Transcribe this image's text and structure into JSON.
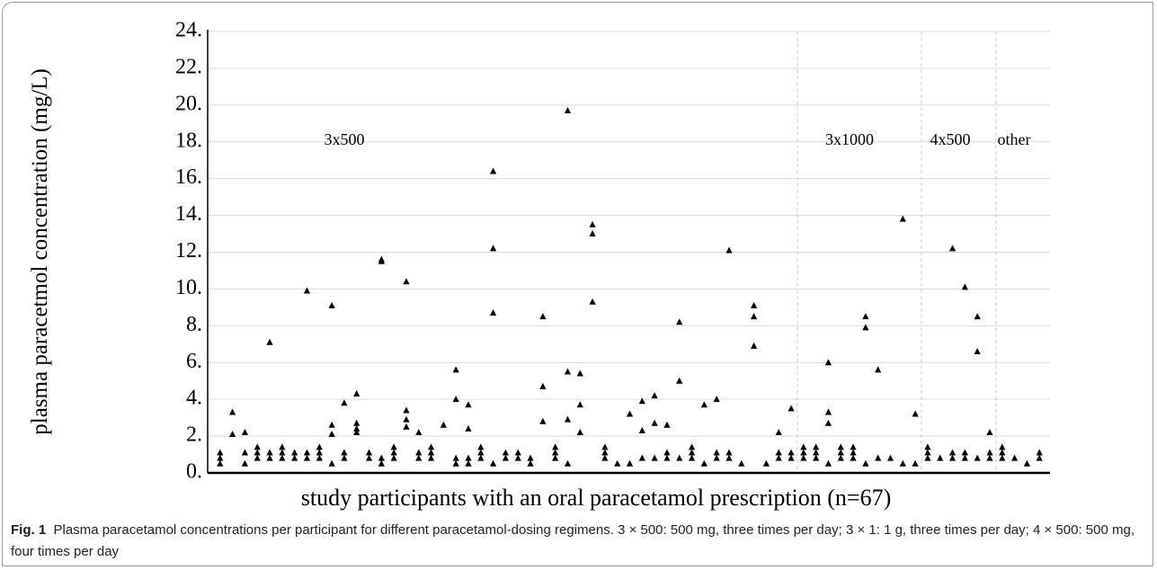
{
  "chart_data": {
    "type": "scatter",
    "y_label": "plasma paracetmol concentration (mg/L)",
    "x_label": "study participants with an oral paracetamol prescription (n=67)",
    "annotations": [
      "3x500",
      "3x1000",
      "4x500",
      "other"
    ],
    "dividers": [
      47.5,
      57.5,
      63.5
    ],
    "xlim": [
      0,
      68
    ],
    "ylim": [
      0,
      24
    ],
    "yticks": [
      {
        "value": 0,
        "label": "0."
      },
      {
        "value": 2,
        "label": "2."
      },
      {
        "value": 4,
        "label": "4."
      },
      {
        "value": 6,
        "label": "6."
      },
      {
        "value": 8,
        "label": "8."
      },
      {
        "value": 10,
        "label": "10."
      },
      {
        "value": 12,
        "label": "12."
      },
      {
        "value": 14,
        "label": "14."
      },
      {
        "value": 16,
        "label": "16."
      },
      {
        "value": 18,
        "label": "18."
      },
      {
        "value": 20,
        "label": "20."
      },
      {
        "value": 22,
        "label": "22."
      },
      {
        "value": 24,
        "label": "24."
      }
    ],
    "grid": true,
    "color": "#000000",
    "x": [
      1,
      1,
      1,
      2,
      2,
      3,
      3,
      3,
      4,
      4,
      4,
      5,
      5,
      5,
      6,
      6,
      6,
      7,
      7,
      8,
      8,
      8,
      9,
      9,
      9,
      10,
      10,
      10,
      10,
      11,
      11,
      11,
      12,
      12,
      12,
      12,
      13,
      13,
      14,
      14,
      14,
      14,
      15,
      15,
      15,
      16,
      16,
      16,
      16,
      17,
      17,
      17,
      18,
      18,
      18,
      19,
      20,
      20,
      20,
      20,
      21,
      21,
      21,
      21,
      22,
      22,
      22,
      23,
      23,
      23,
      23,
      24,
      24,
      25,
      25,
      26,
      26,
      27,
      27,
      27,
      28,
      28,
      28,
      29,
      29,
      29,
      29,
      30,
      30,
      30,
      31,
      31,
      31,
      32,
      32,
      32,
      33,
      34,
      34,
      35,
      35,
      35,
      36,
      36,
      36,
      37,
      37,
      37,
      38,
      38,
      38,
      39,
      39,
      39,
      40,
      40,
      41,
      41,
      41,
      42,
      42,
      42,
      43,
      44,
      44,
      44,
      45,
      46,
      46,
      46,
      47,
      47,
      47,
      48,
      48,
      48,
      49,
      49,
      49,
      50,
      50,
      50,
      50,
      51,
      51,
      51,
      52,
      52,
      52,
      53,
      53,
      53,
      54,
      54,
      55,
      56,
      56,
      57,
      57,
      58,
      58,
      58,
      59,
      60,
      60,
      60,
      61,
      61,
      61,
      62,
      62,
      62,
      63,
      63,
      63,
      64,
      64,
      64,
      65,
      66,
      67,
      67
    ],
    "values": [
      0.5,
      0.8,
      1.1,
      2.1,
      3.3,
      0.5,
      1.1,
      2.2,
      0.8,
      1.1,
      1.4,
      0.8,
      1.1,
      7.1,
      0.8,
      1.1,
      1.4,
      0.8,
      1.1,
      0.8,
      1.1,
      9.9,
      0.8,
      1.1,
      1.4,
      0.5,
      2.1,
      2.6,
      9.1,
      0.8,
      1.1,
      3.8,
      2.2,
      2.4,
      2.7,
      4.3,
      0.8,
      1.1,
      0.5,
      0.8,
      11.5,
      11.6,
      0.8,
      1.1,
      1.4,
      2.5,
      2.9,
      3.4,
      10.4,
      0.8,
      1.1,
      2.2,
      0.8,
      1.1,
      1.4,
      2.6,
      0.5,
      0.8,
      4.0,
      5.6,
      0.5,
      0.8,
      2.4,
      3.7,
      0.8,
      1.1,
      1.4,
      0.5,
      8.7,
      12.2,
      16.4,
      0.8,
      1.1,
      0.8,
      1.1,
      0.5,
      0.8,
      2.8,
      4.7,
      8.5,
      0.8,
      1.1,
      1.4,
      0.5,
      2.9,
      5.5,
      19.7,
      2.2,
      3.7,
      5.4,
      9.3,
      13.0,
      13.5,
      0.8,
      1.1,
      1.4,
      0.5,
      0.5,
      3.2,
      0.8,
      2.3,
      3.9,
      0.8,
      2.7,
      4.2,
      0.8,
      1.1,
      2.6,
      0.8,
      5.0,
      8.2,
      0.8,
      1.1,
      1.4,
      0.5,
      3.7,
      0.8,
      1.1,
      4.0,
      0.8,
      1.1,
      12.1,
      0.5,
      6.9,
      8.5,
      9.1,
      0.5,
      0.8,
      1.1,
      2.2,
      0.8,
      1.1,
      3.5,
      0.8,
      1.1,
      1.4,
      0.8,
      1.1,
      1.4,
      0.5,
      2.7,
      3.3,
      6.0,
      0.8,
      1.1,
      1.4,
      0.8,
      1.1,
      1.4,
      0.5,
      7.9,
      8.5,
      0.8,
      5.6,
      0.8,
      0.5,
      13.8,
      0.5,
      3.2,
      0.8,
      1.1,
      1.4,
      0.8,
      0.8,
      1.1,
      12.2,
      0.8,
      1.1,
      10.1,
      0.8,
      6.6,
      8.5,
      0.8,
      1.1,
      2.2,
      0.8,
      1.1,
      1.4,
      0.8,
      0.5,
      0.8,
      1.1
    ]
  },
  "caption": {
    "label": "Fig. 1",
    "text": "Plasma paracetamol concentrations per participant for different paracetamol-dosing regimens. 3 × 500: 500 mg, three times per day; 3 × 1: 1 g, three times per day; 4 × 500: 500 mg, four times per day"
  }
}
